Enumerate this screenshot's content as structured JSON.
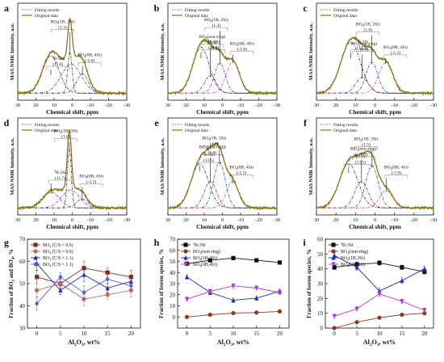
{
  "chart_data": [
    {
      "panel": "a",
      "type": "line",
      "xlabel": "Chemical shift, ppm",
      "ylabel": "MAS NMR Intensity, a.u.",
      "xlim": [
        30,
        -30
      ],
      "xticks": [
        30,
        20,
        10,
        0,
        -10,
        -20,
        -30
      ],
      "legend": {
        "fitting": "Fitting results",
        "original": "Original data",
        "position": "top-left"
      },
      "peaks": [
        {
          "label": "[3]B-3Si",
          "value": "(11.8)",
          "center": 11.8,
          "amp": 0.42,
          "width": 4.6,
          "color": "#8b1a1a",
          "label_offset": [
            -4,
            -0.07
          ]
        },
        {
          "label": "BO4(1B, 3Si)",
          "value": "(1.3)",
          "center": 1.3,
          "amp": 0.46,
          "width": 1.2,
          "color": "#2a2a2a",
          "label_offset": [
            4,
            0.31
          ]
        },
        {
          "label": "BO4(0B, 4Si)",
          "value": "(-5.6)",
          "center": -5.6,
          "amp": 0.22,
          "width": 3.2,
          "color": "#1f3f9f",
          "label_offset": [
            -4,
            0.17
          ]
        },
        {
          "label": "",
          "value": "",
          "center": 0.6,
          "amp": 0.33,
          "width": 5.5,
          "color": "#3a3ad0",
          "label_offset": [
            0,
            0
          ]
        }
      ]
    },
    {
      "panel": "b",
      "type": "line",
      "xlabel": "Chemical shift, ppm",
      "ylabel": "MAS NMR Intensity, a.u.",
      "xlim": [
        30,
        -30
      ],
      "xticks": [
        30,
        20,
        10,
        0,
        -10,
        -20,
        -30
      ],
      "legend": {
        "fitting": "Fitting results",
        "original": "Original data",
        "position": "top-left"
      },
      "peaks": [
        {
          "label": "[3]B-3Si",
          "value": "(11.8)",
          "center": 11.8,
          "amp": 0.52,
          "width": 4.6,
          "color": "#2a2a2a",
          "label_offset": [
            -7,
            0.02
          ]
        },
        {
          "label": "BO3(non-ring)",
          "value": "(6.6)",
          "center": 6.6,
          "amp": 0.2,
          "width": 3.2,
          "color": "#8b1a1a",
          "label_offset": [
            -1,
            0.4
          ]
        },
        {
          "label": "BO4(1B, 3Si)",
          "value": "(1.4)",
          "center": 1.4,
          "amp": 0.34,
          "width": 3.0,
          "color": "#1f3f9f",
          "label_offset": [
            2,
            0.45
          ]
        },
        {
          "label": "BO4(0B, 4Si)",
          "value": "(-5.8)",
          "center": -5.8,
          "amp": 0.36,
          "width": 3.6,
          "color": "#c23ad9",
          "label_offset": [
            -5,
            0.16
          ]
        }
      ]
    },
    {
      "panel": "c",
      "type": "line",
      "xlabel": "Chemical shift, ppm",
      "ylabel": "MAS NMR Intensity, a.u.",
      "xlim": [
        30,
        -30
      ],
      "xticks": [
        30,
        20,
        10,
        0,
        -10,
        -20,
        -30
      ],
      "legend": {
        "fitting": "Fitting results",
        "original": "Original data",
        "position": "top-left"
      },
      "peaks": [
        {
          "label": "[3]B-3Si",
          "value": "(12.5)",
          "center": 12.5,
          "amp": 0.58,
          "width": 5.0,
          "color": "#2a2a2a",
          "label_offset": [
            -6,
            -0.04
          ]
        },
        {
          "label": "BO3(non-ring)",
          "value": "(6.6)",
          "center": 6.6,
          "amp": 0.18,
          "width": 3.2,
          "color": "#8b1a1a",
          "label_offset": [
            -1,
            0.34
          ]
        },
        {
          "label": "BO4(1B, 3Si)",
          "value": "(1.6)",
          "center": 1.6,
          "amp": 0.35,
          "width": 3.0,
          "color": "#1f3f9f",
          "label_offset": [
            2,
            0.39
          ]
        },
        {
          "label": "BO4(0B, 4Si)",
          "value": "(-5.5)",
          "center": -5.5,
          "amp": 0.35,
          "width": 3.6,
          "color": "#c23ad9",
          "label_offset": [
            -5,
            0.13
          ]
        }
      ]
    },
    {
      "panel": "d",
      "type": "line",
      "xlabel": "Chemical shift, ppm",
      "ylabel": "MAS NMR Intensity, a.u.",
      "xlim": [
        30,
        -30
      ],
      "xticks": [
        30,
        20,
        10,
        0,
        -10,
        -20,
        -30
      ],
      "legend": {
        "fitting": "Fitting results",
        "original": "Original data",
        "position": "top-left"
      },
      "peaks": [
        {
          "label": "[3]B-3Si",
          "value": "(11.7)",
          "center": 11.7,
          "amp": 0.18,
          "width": 4.6,
          "color": "#8b1a1a",
          "label_offset": [
            -5,
            0.18
          ]
        },
        {
          "label": "BO4(1B, 3Si)",
          "value": "(1.6)",
          "center": 1.6,
          "amp": 0.66,
          "width": 1.1,
          "color": "#2a2a2a",
          "label_offset": [
            2,
            0.17
          ]
        },
        {
          "label": "BO4(0B, 4Si)",
          "value": "(-5.5)",
          "center": -5.5,
          "amp": 0.1,
          "width": 3.2,
          "color": "#1f3f9f",
          "label_offset": [
            -5,
            0.22
          ]
        },
        {
          "label": "",
          "value": "",
          "center": 1.0,
          "amp": 0.2,
          "width": 5.0,
          "color": "#3a3ad0",
          "label_offset": [
            0,
            0
          ]
        }
      ]
    },
    {
      "panel": "e",
      "type": "line",
      "xlabel": "Chemical shift, ppm",
      "ylabel": "MAS NMR Intensity, a.u.",
      "xlim": [
        30,
        -30
      ],
      "xticks": [
        30,
        20,
        10,
        0,
        -10,
        -20,
        -30
      ],
      "legend": {
        "fitting": "Fitting results",
        "original": "Original data",
        "position": "top-left"
      },
      "peaks": [
        {
          "label": "[3]B-3Si",
          "value": "(12.5)",
          "center": 12.5,
          "amp": 0.5,
          "width": 4.8,
          "color": "#2a2a2a",
          "label_offset": [
            -5,
            0.06
          ]
        },
        {
          "label": "BO3(non-ring)",
          "value": "(6.6)",
          "center": 6.6,
          "amp": 0.3,
          "width": 3.4,
          "color": "#8b1a1a",
          "label_offset": [
            -1,
            0.35
          ]
        },
        {
          "label": "BO4(1B, 3Si)",
          "value": "(1.6)",
          "center": 1.6,
          "amp": 0.52,
          "width": 3.2,
          "color": "#1f3f9f",
          "label_offset": [
            3,
            0.23
          ]
        },
        {
          "label": "BO4(0B, 4Si)",
          "value": "(-5.5)",
          "center": -5.5,
          "amp": 0.3,
          "width": 3.4,
          "color": "#c23ad9",
          "label_offset": [
            -5,
            0.12
          ]
        }
      ]
    },
    {
      "panel": "f",
      "type": "line",
      "xlabel": "Chemical shift, ppm",
      "ylabel": "MAS NMR Intensity, a.u.",
      "xlim": [
        30,
        -30
      ],
      "xticks": [
        30,
        20,
        10,
        0,
        -10,
        -20,
        -30
      ],
      "legend": {
        "fitting": "Fitting results",
        "original": "Original data",
        "position": "top-left"
      },
      "peaks": [
        {
          "label": "[3]B-3Si",
          "value": "(13.5)",
          "center": 13.5,
          "amp": 0.5,
          "width": 4.8,
          "color": "#2a2a2a",
          "label_offset": [
            -6,
            0.04
          ]
        },
        {
          "label": "BO3(non-ring)",
          "value": "(6.9)",
          "center": 6.9,
          "amp": 0.3,
          "width": 3.4,
          "color": "#8b1a1a",
          "label_offset": [
            -1,
            0.33
          ]
        },
        {
          "label": "BO4(1B, 3Si)",
          "value": "(1.5)",
          "center": 1.5,
          "amp": 0.48,
          "width": 3.2,
          "color": "#1f3f9f",
          "label_offset": [
            3,
            0.26
          ]
        },
        {
          "label": "BO4(0B, 4Si)",
          "value": "(-5.9)",
          "center": -5.9,
          "amp": 0.2,
          "width": 3.4,
          "color": "#c23ad9",
          "label_offset": [
            -5,
            0.22
          ]
        }
      ]
    },
    {
      "panel": "g",
      "type": "line",
      "xlabel": "Al2O3, wt%",
      "ylabel": "Fraction of BO3 and BO4, %",
      "x": [
        0,
        5,
        10,
        15,
        20
      ],
      "xlim": [
        -2,
        22
      ],
      "xticks": [
        0,
        5,
        10,
        15,
        20
      ],
      "ylim": [
        30,
        70
      ],
      "yticks": [
        30,
        40,
        50,
        60,
        70
      ],
      "legend_position": "top-left",
      "series": [
        {
          "name": "BO3 (C/S = 0.6)",
          "marker": "square",
          "color": "#8b2a1a",
          "values": [
            53,
            50,
            57,
            55,
            53
          ],
          "err": [
            3,
            2,
            3,
            2,
            3
          ]
        },
        {
          "name": "BO4 (C/S = 0.6)",
          "marker": "circle",
          "color": "#c06a5a",
          "values": [
            47,
            50,
            43,
            45,
            47
          ],
          "err": [
            3,
            2,
            3,
            2,
            3
          ]
        },
        {
          "name": "BO3 (C/S = 1.1)",
          "marker": "triangle",
          "color": "#1f2fb0",
          "values": [
            59,
            47,
            54,
            48,
            51
          ],
          "err": [
            3,
            2,
            3,
            2,
            2
          ]
        },
        {
          "name": "BO4 (C/S = 1.1)",
          "marker": "diamond",
          "color": "#5a5ad9",
          "values": [
            41,
            53,
            46,
            52,
            49
          ],
          "err": [
            3,
            2,
            3,
            2,
            2
          ]
        }
      ]
    },
    {
      "panel": "h",
      "type": "line",
      "xlabel": "Al2O3, wt%",
      "ylabel": "Fraction of boron species, %",
      "x": [
        0,
        5,
        10,
        15,
        20
      ],
      "xlim": [
        -2,
        22
      ],
      "xticks": [
        0,
        5,
        10,
        15,
        20
      ],
      "ylim": [
        -10,
        70
      ],
      "yticks": [
        0,
        10,
        20,
        30,
        40,
        50,
        60,
        70
      ],
      "legend_position": "top-left",
      "series": [
        {
          "name": "[3]B-3Si",
          "marker": "square",
          "color": "#111111",
          "values": [
            48,
            51,
            53,
            51,
            49
          ],
          "err": [
            1.5,
            1.5,
            1.5,
            1.5,
            1.5
          ]
        },
        {
          "name": "BO3(non-ring)",
          "marker": "circle",
          "color": "#8b3a1a",
          "values": [
            0,
            2,
            3.5,
            4,
            5
          ],
          "err": [
            0.6,
            0.6,
            0.6,
            0.6,
            0.6
          ]
        },
        {
          "name": "BO4(1B,3Si)",
          "marker": "triangle",
          "color": "#1f2fb0",
          "values": [
            36,
            22,
            15,
            17,
            23
          ],
          "err": [
            2,
            2,
            2,
            2,
            2
          ]
        },
        {
          "name": "BO4(0B,4Si)",
          "marker": "triangle-down",
          "color": "#b03ad9",
          "values": [
            16,
            23,
            28,
            26,
            22
          ],
          "err": [
            2,
            2,
            2,
            2,
            2
          ]
        }
      ]
    },
    {
      "panel": "i",
      "type": "line",
      "xlabel": "Al2O3, wt%",
      "ylabel": "Fraction of boron species, %",
      "x": [
        0,
        5,
        10,
        15,
        20
      ],
      "xlim": [
        -2,
        22
      ],
      "xticks": [
        0,
        5,
        10,
        15,
        20
      ],
      "ylim": [
        0,
        60
      ],
      "yticks": [
        0,
        10,
        20,
        30,
        40,
        50,
        60
      ],
      "legend_position": "top-left",
      "series": [
        {
          "name": "[3]B-3Si",
          "marker": "square",
          "color": "#111111",
          "values": [
            41,
            43,
            44,
            41,
            38
          ],
          "err": [
            1.5,
            1.5,
            1.5,
            1.5,
            1.5
          ]
        },
        {
          "name": "BO3(non-ring)",
          "marker": "circle",
          "color": "#8b3a1a",
          "values": [
            0,
            4,
            7,
            9,
            10
          ],
          "err": [
            0.8,
            0.8,
            0.8,
            0.8,
            0.8
          ]
        },
        {
          "name": "BO4(1B,3Si)",
          "marker": "triangle",
          "color": "#1f2fb0",
          "values": [
            49,
            41,
            25,
            32,
            40
          ],
          "err": [
            2,
            2,
            2,
            2,
            2
          ]
        },
        {
          "name": "BO4(0B,4Si)",
          "marker": "triangle-down",
          "color": "#b03ad9",
          "values": [
            8,
            13,
            23,
            18,
            12
          ],
          "err": [
            1.5,
            1.5,
            1.5,
            1.5,
            1.5
          ]
        }
      ]
    }
  ]
}
